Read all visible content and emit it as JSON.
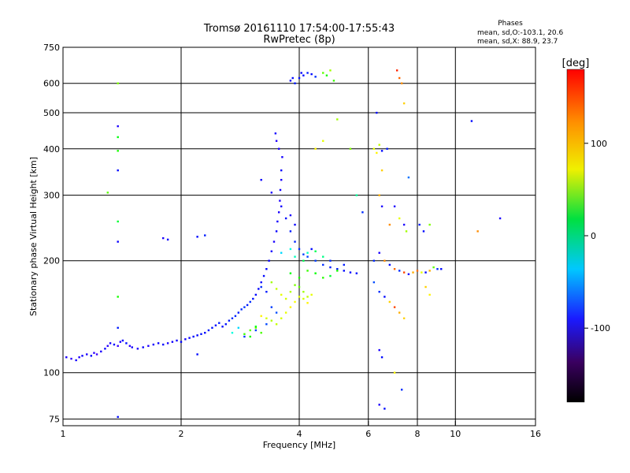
{
  "chart_data": {
    "type": "scatter",
    "title": "Tromsø 20161110 17:54:00-17:55:43",
    "subtitle": "RwPretec (8p)",
    "xlabel": "Frequency [MHz]",
    "ylabel": "Stationary phase Virtual Height [km]",
    "x_scale": "log2",
    "y_scale": "log",
    "xlim": [
      1,
      16
    ],
    "ylim": [
      72,
      750
    ],
    "x_ticks": [
      "1",
      "2",
      "4",
      "6",
      "8",
      "10",
      "16"
    ],
    "y_ticks": [
      "75",
      "100",
      "200",
      "300",
      "400",
      "500",
      "600",
      "750"
    ],
    "grid": true,
    "phase_stats": {
      "heading": "Phases",
      "line_o": "mean, sd,O:-103.1, 20.6",
      "line_x": "mean, sd,X:  88.9, 23.7"
    },
    "colorbar": {
      "label": "[deg]",
      "ticks": [
        "100",
        "0",
        "-100"
      ],
      "range": [
        -180,
        180
      ]
    },
    "series": [
      {
        "points": [
          [
            1.02,
            110,
            -120
          ],
          [
            1.05,
            109,
            -125
          ],
          [
            1.08,
            108,
            -118
          ],
          [
            1.1,
            110,
            -122
          ],
          [
            1.12,
            111,
            -115
          ],
          [
            1.15,
            112,
            -120
          ],
          [
            1.18,
            111,
            -110
          ],
          [
            1.2,
            113,
            -125
          ],
          [
            1.22,
            112,
            -130
          ],
          [
            1.25,
            114,
            -120
          ],
          [
            1.28,
            116,
            -115
          ],
          [
            1.3,
            118,
            -125
          ],
          [
            1.32,
            120,
            -118
          ],
          [
            1.35,
            119,
            -112
          ],
          [
            1.38,
            118,
            -128
          ],
          [
            1.4,
            121,
            -120
          ],
          [
            1.42,
            122,
            -115
          ],
          [
            1.45,
            120,
            -110
          ],
          [
            1.48,
            118,
            -125
          ],
          [
            1.5,
            117,
            -118
          ],
          [
            1.55,
            116,
            -120
          ],
          [
            1.6,
            117,
            -115
          ],
          [
            1.65,
            118,
            -122
          ],
          [
            1.7,
            119,
            -118
          ],
          [
            1.75,
            120,
            -115
          ],
          [
            1.8,
            119,
            -110
          ],
          [
            1.85,
            120,
            -120
          ],
          [
            1.9,
            121,
            -118
          ],
          [
            1.95,
            122,
            -115
          ],
          [
            2.0,
            121,
            -112
          ],
          [
            2.05,
            123,
            -118
          ],
          [
            2.1,
            124,
            -115
          ],
          [
            2.15,
            125,
            -110
          ],
          [
            2.2,
            126,
            -112
          ],
          [
            2.25,
            127,
            -108
          ],
          [
            2.3,
            128,
            -110
          ],
          [
            2.35,
            130,
            -105
          ],
          [
            2.4,
            132,
            -108
          ],
          [
            2.45,
            134,
            -110
          ],
          [
            2.5,
            136,
            -105
          ],
          [
            2.55,
            133,
            -110
          ],
          [
            2.6,
            135,
            -108
          ],
          [
            2.65,
            138,
            -105
          ],
          [
            2.7,
            140,
            -100
          ],
          [
            2.75,
            142,
            -102
          ],
          [
            2.8,
            145,
            -105
          ],
          [
            2.85,
            148,
            -100
          ],
          [
            2.9,
            150,
            -98
          ],
          [
            2.95,
            152,
            -105
          ],
          [
            3.0,
            155,
            -100
          ],
          [
            3.05,
            158,
            -108
          ],
          [
            3.1,
            162,
            -110
          ],
          [
            3.15,
            168,
            -112
          ],
          [
            3.2,
            175,
            -115
          ],
          [
            3.25,
            182,
            -110
          ],
          [
            3.3,
            190,
            -112
          ],
          [
            3.35,
            200,
            -115
          ],
          [
            3.4,
            212,
            -118
          ],
          [
            3.45,
            225,
            -120
          ],
          [
            3.5,
            240,
            -115
          ],
          [
            3.52,
            255,
            -118
          ],
          [
            3.55,
            270,
            -120
          ],
          [
            3.57,
            290,
            -122
          ],
          [
            3.58,
            310,
            -118
          ],
          [
            3.6,
            330,
            -120
          ],
          [
            3.6,
            350,
            -115
          ],
          [
            3.62,
            380,
            -118
          ],
          [
            3.55,
            400,
            -120
          ],
          [
            3.5,
            420,
            -122
          ],
          [
            3.48,
            440,
            -118
          ],
          [
            3.7,
            260,
            -110
          ],
          [
            3.8,
            240,
            -105
          ],
          [
            3.9,
            225,
            -102
          ],
          [
            4.0,
            215,
            -100
          ],
          [
            4.1,
            208,
            -95
          ],
          [
            4.2,
            205,
            -92
          ],
          [
            4.4,
            200,
            -95
          ],
          [
            4.6,
            195,
            -100
          ],
          [
            4.8,
            192,
            -105
          ],
          [
            5.0,
            190,
            -108
          ],
          [
            5.2,
            188,
            -110
          ],
          [
            5.4,
            186,
            -112
          ],
          [
            5.6,
            185,
            -108
          ],
          [
            3.3,
            165,
            -105
          ],
          [
            3.2,
            170,
            -100
          ],
          [
            3.4,
            150,
            -95
          ],
          [
            3.5,
            145,
            -90
          ],
          [
            3.3,
            135,
            -92
          ],
          [
            3.1,
            130,
            -95
          ],
          [
            2.9,
            125,
            -98
          ],
          [
            2.2,
            112,
            -110
          ],
          [
            1.3,
            305,
            60
          ],
          [
            1.38,
            600,
            70
          ],
          [
            1.38,
            460,
            -120
          ],
          [
            1.38,
            430,
            30
          ],
          [
            1.38,
            395,
            40
          ],
          [
            1.38,
            350,
            -110
          ],
          [
            1.38,
            255,
            20
          ],
          [
            1.38,
            225,
            -115
          ],
          [
            1.38,
            160,
            40
          ],
          [
            1.38,
            132,
            -105
          ],
          [
            1.38,
            76,
            -110
          ],
          [
            1.8,
            230,
            -120
          ],
          [
            1.85,
            228,
            -115
          ],
          [
            2.2,
            232,
            -110
          ],
          [
            2.3,
            234,
            -105
          ],
          [
            3.85,
            620,
            -110
          ],
          [
            3.9,
            600,
            -105
          ],
          [
            4.0,
            620,
            -108
          ],
          [
            4.05,
            640,
            -112
          ],
          [
            4.1,
            630,
            -110
          ],
          [
            4.2,
            640,
            -105
          ],
          [
            4.3,
            635,
            -110
          ],
          [
            4.4,
            625,
            -100
          ],
          [
            3.8,
            610,
            -115
          ],
          [
            4.6,
            640,
            60
          ],
          [
            4.7,
            630,
            40
          ],
          [
            4.8,
            650,
            80
          ],
          [
            4.9,
            610,
            50
          ],
          [
            4.4,
            400,
            110
          ],
          [
            4.6,
            420,
            100
          ],
          [
            5.0,
            480,
            80
          ],
          [
            5.4,
            400,
            70
          ],
          [
            5.6,
            300,
            -10
          ],
          [
            5.8,
            270,
            -100
          ],
          [
            6.2,
            400,
            100
          ],
          [
            6.3,
            390,
            110
          ],
          [
            6.4,
            410,
            90
          ],
          [
            6.5,
            395,
            -110
          ],
          [
            6.7,
            400,
            -105
          ],
          [
            7.1,
            650,
            170
          ],
          [
            7.2,
            620,
            150
          ],
          [
            7.3,
            600,
            140
          ],
          [
            7.4,
            530,
            120
          ],
          [
            6.3,
            500,
            -110
          ],
          [
            6.5,
            350,
            120
          ],
          [
            6.4,
            300,
            130
          ],
          [
            6.5,
            280,
            -120
          ],
          [
            6.8,
            250,
            140
          ],
          [
            7.0,
            280,
            -120
          ],
          [
            7.2,
            260,
            100
          ],
          [
            7.4,
            250,
            -120
          ],
          [
            7.5,
            240,
            80
          ],
          [
            7.6,
            335,
            -80
          ],
          [
            8.1,
            250,
            -105
          ],
          [
            8.3,
            240,
            -110
          ],
          [
            8.6,
            250,
            70
          ],
          [
            6.2,
            200,
            -100
          ],
          [
            6.4,
            210,
            -120
          ],
          [
            6.6,
            200,
            140
          ],
          [
            6.8,
            195,
            -110
          ],
          [
            7.0,
            190,
            150
          ],
          [
            7.2,
            188,
            -100
          ],
          [
            7.4,
            186,
            160
          ],
          [
            7.6,
            184,
            -120
          ],
          [
            7.8,
            186,
            130
          ],
          [
            8.0,
            188,
            150
          ],
          [
            8.2,
            186,
            100
          ],
          [
            8.4,
            186,
            -110
          ],
          [
            8.6,
            188,
            130
          ],
          [
            8.8,
            192,
            60
          ],
          [
            9.0,
            190,
            -100
          ],
          [
            9.2,
            190,
            -110
          ],
          [
            6.2,
            175,
            -90
          ],
          [
            6.4,
            165,
            -100
          ],
          [
            6.6,
            160,
            -110
          ],
          [
            6.8,
            155,
            120
          ],
          [
            7.0,
            150,
            160
          ],
          [
            7.2,
            145,
            130
          ],
          [
            7.4,
            140,
            120
          ],
          [
            8.4,
            170,
            120
          ],
          [
            8.6,
            162,
            110
          ],
          [
            6.4,
            115,
            -120
          ],
          [
            6.5,
            110,
            -110
          ],
          [
            7.0,
            100,
            110
          ],
          [
            6.4,
            82,
            -120
          ],
          [
            6.6,
            80,
            -110
          ],
          [
            7.3,
            90,
            -100
          ],
          [
            11,
            475,
            -110
          ],
          [
            11.4,
            240,
            140
          ],
          [
            13,
            260,
            -120
          ],
          [
            3.4,
            175,
            80
          ],
          [
            3.5,
            168,
            90
          ],
          [
            3.6,
            162,
            100
          ],
          [
            3.7,
            158,
            95
          ],
          [
            3.8,
            165,
            85
          ],
          [
            3.9,
            172,
            70
          ],
          [
            4.0,
            170,
            60
          ],
          [
            4.1,
            165,
            80
          ],
          [
            4.2,
            160,
            90
          ],
          [
            4.3,
            162,
            100
          ],
          [
            3.2,
            142,
            110
          ],
          [
            3.3,
            140,
            95
          ],
          [
            3.4,
            138,
            85
          ],
          [
            3.5,
            135,
            90
          ],
          [
            3.6,
            140,
            95
          ],
          [
            3.7,
            145,
            100
          ],
          [
            3.8,
            150,
            110
          ],
          [
            3.9,
            155,
            105
          ],
          [
            4.0,
            160,
            100
          ],
          [
            4.1,
            158,
            95
          ],
          [
            4.2,
            154,
            110
          ],
          [
            3.0,
            130,
            60
          ],
          [
            3.1,
            132,
            70
          ],
          [
            3.2,
            128,
            55
          ],
          [
            2.9,
            127,
            50
          ],
          [
            3.0,
            125,
            40
          ],
          [
            3.1,
            133,
            30
          ],
          [
            2.8,
            132,
            -50
          ],
          [
            2.7,
            128,
            -30
          ],
          [
            3.8,
            185,
            30
          ],
          [
            4.0,
            180,
            40
          ],
          [
            4.2,
            188,
            50
          ],
          [
            4.4,
            185,
            35
          ],
          [
            4.6,
            180,
            45
          ],
          [
            4.8,
            182,
            20
          ],
          [
            5.0,
            188,
            40
          ],
          [
            4.2,
            210,
            -20
          ],
          [
            4.4,
            212,
            10
          ],
          [
            4.6,
            205,
            -5
          ],
          [
            3.6,
            210,
            -50
          ],
          [
            3.8,
            215,
            -30
          ],
          [
            3.9,
            205,
            -20
          ],
          [
            4.1,
            200,
            10
          ],
          [
            3.2,
            330,
            -115
          ],
          [
            3.4,
            305,
            -120
          ],
          [
            3.6,
            280,
            -118
          ],
          [
            3.8,
            265,
            -120
          ],
          [
            3.9,
            250,
            -115
          ],
          [
            4.3,
            215,
            -110
          ],
          [
            4.8,
            200,
            -100
          ],
          [
            5.2,
            195,
            -105
          ]
        ]
      }
    ]
  }
}
